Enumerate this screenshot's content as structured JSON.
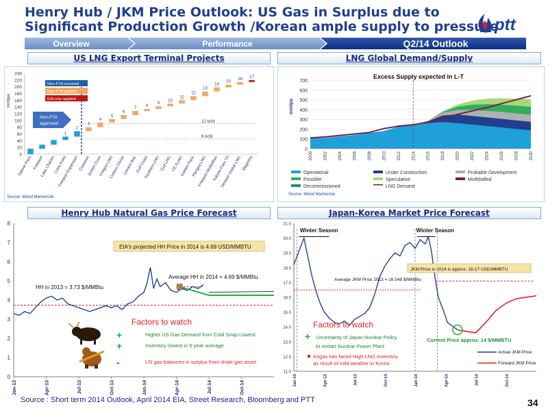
{
  "title_line1": "Henry Hub / JKM Price Outlook: US Gas in Surplus due to",
  "title_line2": "Significant Production Growth /Korean ample supply to pressure",
  "logo_text": "ptt",
  "nav": [
    "Overview",
    "Performance",
    "Q2/14  Outlook"
  ],
  "panels": {
    "us_lng": "US LNG Export Terminal Projects",
    "lng_global": "LNG Global Demand/Supply",
    "henry_hub": "Henry Hub Natural Gas Price Forecast",
    "japan_korea": "Japan-Korea Market Price Forecast"
  },
  "footer": "Source : Short term 2014 Outlook, April 2014  EIA, Street Research, Bloomberg and PTT",
  "page_number": "34",
  "chart_data": [
    {
      "type": "bar",
      "id": "us_lng",
      "ylabel": "mmtpa",
      "ylim": [
        0,
        240
      ],
      "yticks": [
        0,
        20,
        40,
        60,
        80,
        100,
        120,
        140,
        160,
        180,
        200,
        220,
        240
      ],
      "categories": [
        "Sabine Pass",
        "Freeport",
        "Lake Charles",
        "Cove Point",
        "Freeport Expansion",
        "Cameron",
        "Jordan Cove",
        "Oregon LNG",
        "Corpus Christi",
        "Lavaca Bay",
        "Gulf Coast",
        "Southern LNG",
        "Gulf LNG",
        "CE FLNG",
        "Golden Pass",
        "Pangea LNG",
        "Freeport-McMoRan",
        "Sabine Pass T5",
        "Venture Global LNG",
        "Magnolia"
      ],
      "numbers": [
        "",
        "",
        "",
        "1",
        "2",
        "3",
        "4",
        "5",
        "6",
        "7",
        "8",
        "9",
        "10",
        "11",
        "12",
        "13",
        "14",
        "15",
        "16",
        "17"
      ],
      "base": [
        0,
        16,
        28,
        42,
        52,
        68,
        80,
        94,
        104,
        116,
        128,
        134,
        142,
        150,
        160,
        172,
        186,
        198,
        206,
        214
      ],
      "values": [
        16,
        12,
        14,
        10,
        16,
        12,
        14,
        10,
        12,
        12,
        6,
        8,
        8,
        10,
        12,
        14,
        12,
        8,
        8,
        6
      ],
      "legend": [
        {
          "label": "Non-FTA received",
          "color": "#1f5fa8"
        },
        {
          "label": "Non-FTA applied",
          "color": "#f0a860"
        },
        {
          "label": "EIA only applied",
          "color": "#c01818"
        }
      ],
      "callout": "Non-FTA approved",
      "hlines": [
        {
          "label": "12 bcfd",
          "y": 90
        },
        {
          "label": "6 bcfd",
          "y": 45
        }
      ],
      "source": "Source: Wood Mackenzie"
    },
    {
      "type": "area",
      "id": "lng_global",
      "title": "Excess Supply expected in L-T",
      "ylabel": "mmtpa",
      "ylim": [
        0,
        700
      ],
      "yticks": [
        0,
        100,
        200,
        300,
        400,
        500,
        600,
        700
      ],
      "xticks": [
        "2000",
        "2002",
        "2004",
        "2006",
        "2008",
        "2010",
        "2012",
        "2014",
        "2016",
        "2018",
        "2020",
        "2022",
        "2024",
        "2026",
        "2028",
        "2030"
      ],
      "legend": [
        "Operational",
        "Under Construction",
        "Probable Development",
        "Possible",
        "Speculative",
        "Mothballed",
        "Decommissioned",
        "LNG Demand"
      ],
      "source": "Source: Wood Mackenzie"
    },
    {
      "type": "line",
      "id": "henry_hub",
      "ylim": [
        0,
        8
      ],
      "yticks": [
        0,
        1,
        2,
        3,
        4,
        5,
        6,
        7,
        8
      ],
      "xticks": [
        "Jan-13",
        "Apr-13",
        "Jul-13",
        "Oct-13",
        "Jan-14",
        "Apr-14",
        "Jul-14",
        "Oct-14"
      ],
      "annotations": {
        "hh2013": "HH in 2013 = 3.73 $/MMBtu",
        "avg2014": "Average HH in 2014 = 4.69 $/MMBtu",
        "eia": "EIA's projected HH Price in 2014 is 4.69 USD/MMBTU"
      },
      "avg_2013": 3.73,
      "avg_2014": 4.69,
      "factors_title": "Factors to watch",
      "factors": [
        {
          "sign": "+",
          "text": "Higher   US Gas Demand  from Cold Snap Lowest"
        },
        {
          "sign": "+",
          "text": "Inventory lowest  in 5-year average"
        },
        {
          "sign": "-",
          "text": "US gas balances in surplus from shale gas asset"
        }
      ]
    },
    {
      "type": "line",
      "id": "japan_korea",
      "ylim": [
        11,
        21
      ],
      "yticks": [
        "21.0",
        "20.0",
        "19.0",
        "18.0",
        "17.0",
        "16.0",
        "15.0",
        "14.0",
        "13.0",
        "12.0",
        "11.0"
      ],
      "xticks": [
        "Jan-13",
        "Apr-13",
        "Jul-13",
        "Oct-13",
        "Jan-14",
        "Apr-14",
        "Jul-14",
        "Oct-14"
      ],
      "annotations": {
        "winter1": "Winter Season",
        "winter2": "Winter Season",
        "avg2013": "Average JKM Price 2013 = 16.548 $/MMBtu",
        "jkm2014": "JKM Price in 2014 is approx. 16-17  USD/MMBTU",
        "current": "Current Price approx. 14 $/MMBTU"
      },
      "avg_2013": 16.5,
      "legend": [
        {
          "label": "Actual JKM Price",
          "color": "#1f3f9f"
        },
        {
          "label": "Forward JKM Price",
          "color": "#e02020"
        }
      ],
      "factors_title": "Factors to watch",
      "factors": [
        {
          "sign": "+",
          "text": "Uncertainty of  Japan Nuclear Policy to restart Nuclear  Power Plant"
        },
        {
          "sign": "-",
          "text": "Kogas has faced High LNG Inventory as result of mild weather in Korea"
        }
      ]
    }
  ]
}
